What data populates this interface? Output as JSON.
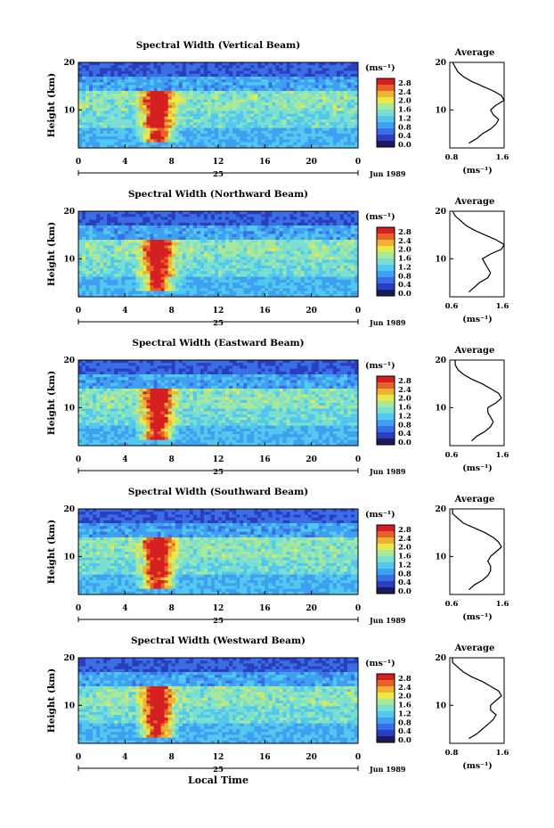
{
  "footer": {
    "xaxis_label": "Local Time"
  },
  "colorbar": {
    "unit": "(ms⁻¹)",
    "ticks": [
      "0.0",
      "0.4",
      "0.8",
      "1.2",
      "1.6",
      "2.0",
      "2.4",
      "2.8"
    ],
    "colors": [
      "#1a1a5a",
      "#2a3fbf",
      "#3a6ee6",
      "#3fa0f2",
      "#52c8ef",
      "#7adfd0",
      "#a8e89a",
      "#e8e84a",
      "#f0b030",
      "#e8602a",
      "#d42020"
    ]
  },
  "chart_data": [
    {
      "type": "heatmap",
      "title": "Spectral Width (Vertical Beam)",
      "xlabel": "",
      "ylabel": "Height (km)",
      "xticks": [
        "0",
        "4",
        "8",
        "12",
        "16",
        "20",
        "0"
      ],
      "xlim": [
        0,
        24
      ],
      "yticks": [
        "10",
        "20"
      ],
      "ylim": [
        2,
        20
      ],
      "date_label": "Jun 1989",
      "day_label": "25",
      "average_profile": {
        "title": "Average",
        "xlabel": "(ms⁻¹)",
        "xticks": [
          "0.8",
          "1.6"
        ],
        "xlim": [
          0.6,
          1.6
        ],
        "yticks": [
          "10",
          "20"
        ],
        "ylim": [
          2,
          20
        ],
        "height": [
          3,
          4,
          5,
          6,
          7,
          8,
          9,
          10,
          11,
          12,
          13,
          14,
          15,
          16,
          17,
          18,
          19,
          20
        ],
        "width": [
          0.95,
          1.1,
          1.2,
          1.35,
          1.45,
          1.5,
          1.4,
          1.35,
          1.45,
          1.6,
          1.55,
          1.4,
          1.2,
          1.0,
          0.85,
          0.75,
          0.7,
          0.65
        ]
      }
    },
    {
      "type": "heatmap",
      "title": "Spectral Width (Northward Beam)",
      "xlabel": "",
      "ylabel": "Height (km)",
      "xticks": [
        "0",
        "4",
        "8",
        "12",
        "16",
        "20",
        "0"
      ],
      "xlim": [
        0,
        24
      ],
      "yticks": [
        "10",
        "20"
      ],
      "ylim": [
        2,
        20
      ],
      "date_label": "Jun 1989",
      "day_label": "25",
      "average_profile": {
        "title": "Average",
        "xlabel": "(ms⁻¹)",
        "xticks": [
          "0.6",
          "1.6"
        ],
        "xlim": [
          0.6,
          1.6
        ],
        "yticks": [
          "10",
          "20"
        ],
        "ylim": [
          2,
          20
        ],
        "height": [
          3,
          4,
          5,
          6,
          7,
          8,
          9,
          10,
          11,
          12,
          13,
          14,
          15,
          16,
          17,
          18,
          19,
          20
        ],
        "width": [
          0.95,
          1.05,
          1.15,
          1.3,
          1.35,
          1.3,
          1.25,
          1.2,
          1.35,
          1.55,
          1.6,
          1.45,
          1.25,
          1.05,
          0.9,
          0.8,
          0.7,
          0.65
        ]
      }
    },
    {
      "type": "heatmap",
      "title": "Spectral Width (Eastward Beam)",
      "xlabel": "",
      "ylabel": "Height (km)",
      "xticks": [
        "0",
        "4",
        "8",
        "12",
        "16",
        "20",
        "0"
      ],
      "xlim": [
        0,
        24
      ],
      "yticks": [
        "10",
        "20"
      ],
      "ylim": [
        2,
        20
      ],
      "date_label": "Jun 1989",
      "day_label": "25",
      "average_profile": {
        "title": "Average",
        "xlabel": "(ms⁻¹)",
        "xticks": [
          "0.6",
          "1.6"
        ],
        "xlim": [
          0.6,
          1.6
        ],
        "yticks": [
          "10",
          "20"
        ],
        "ylim": [
          2,
          20
        ],
        "height": [
          3,
          4,
          5,
          6,
          7,
          8,
          9,
          10,
          11,
          12,
          13,
          14,
          15,
          16,
          17,
          18,
          19,
          20
        ],
        "width": [
          1.0,
          1.1,
          1.25,
          1.35,
          1.4,
          1.35,
          1.3,
          1.3,
          1.45,
          1.55,
          1.5,
          1.35,
          1.2,
          1.0,
          0.85,
          0.75,
          0.7,
          0.7
        ]
      }
    },
    {
      "type": "heatmap",
      "title": "Spectral Width (Southward Beam)",
      "xlabel": "",
      "ylabel": "Height (km)",
      "xticks": [
        "0",
        "4",
        "8",
        "12",
        "16",
        "20",
        "0"
      ],
      "xlim": [
        0,
        24
      ],
      "yticks": [
        "10",
        "20"
      ],
      "ylim": [
        2,
        20
      ],
      "date_label": "Jun 1989",
      "day_label": "25",
      "average_profile": {
        "title": "Average",
        "xlabel": "(ms⁻¹)",
        "xticks": [
          "0.6",
          "1.6"
        ],
        "xlim": [
          0.6,
          1.6
        ],
        "yticks": [
          "10",
          "20"
        ],
        "ylim": [
          2,
          20
        ],
        "height": [
          3,
          4,
          5,
          6,
          7,
          8,
          9,
          10,
          11,
          12,
          13,
          14,
          15,
          16,
          17,
          18,
          19,
          20
        ],
        "width": [
          0.95,
          1.05,
          1.2,
          1.3,
          1.35,
          1.35,
          1.3,
          1.35,
          1.45,
          1.55,
          1.5,
          1.4,
          1.25,
          1.05,
          0.85,
          0.75,
          0.65,
          0.65
        ]
      }
    },
    {
      "type": "heatmap",
      "title": "Spectral Width (Westward Beam)",
      "xlabel": "",
      "ylabel": "Height (km)",
      "xticks": [
        "0",
        "4",
        "8",
        "12",
        "16",
        "20",
        "0"
      ],
      "xlim": [
        0,
        24
      ],
      "yticks": [
        "10",
        "20"
      ],
      "ylim": [
        2,
        20
      ],
      "date_label": "Jun 1989",
      "day_label": "25",
      "average_profile": {
        "title": "Average",
        "xlabel": "(ms⁻¹)",
        "xticks": [
          "0.8",
          "1.6"
        ],
        "xlim": [
          0.6,
          1.6
        ],
        "yticks": [
          "10",
          "20"
        ],
        "ylim": [
          2,
          20
        ],
        "height": [
          3,
          4,
          5,
          6,
          7,
          8,
          9,
          10,
          11,
          12,
          13,
          14,
          15,
          16,
          17,
          18,
          19,
          20
        ],
        "width": [
          0.95,
          1.1,
          1.2,
          1.3,
          1.4,
          1.45,
          1.35,
          1.35,
          1.45,
          1.55,
          1.5,
          1.35,
          1.2,
          1.0,
          0.85,
          0.75,
          0.65,
          0.65
        ]
      }
    }
  ]
}
